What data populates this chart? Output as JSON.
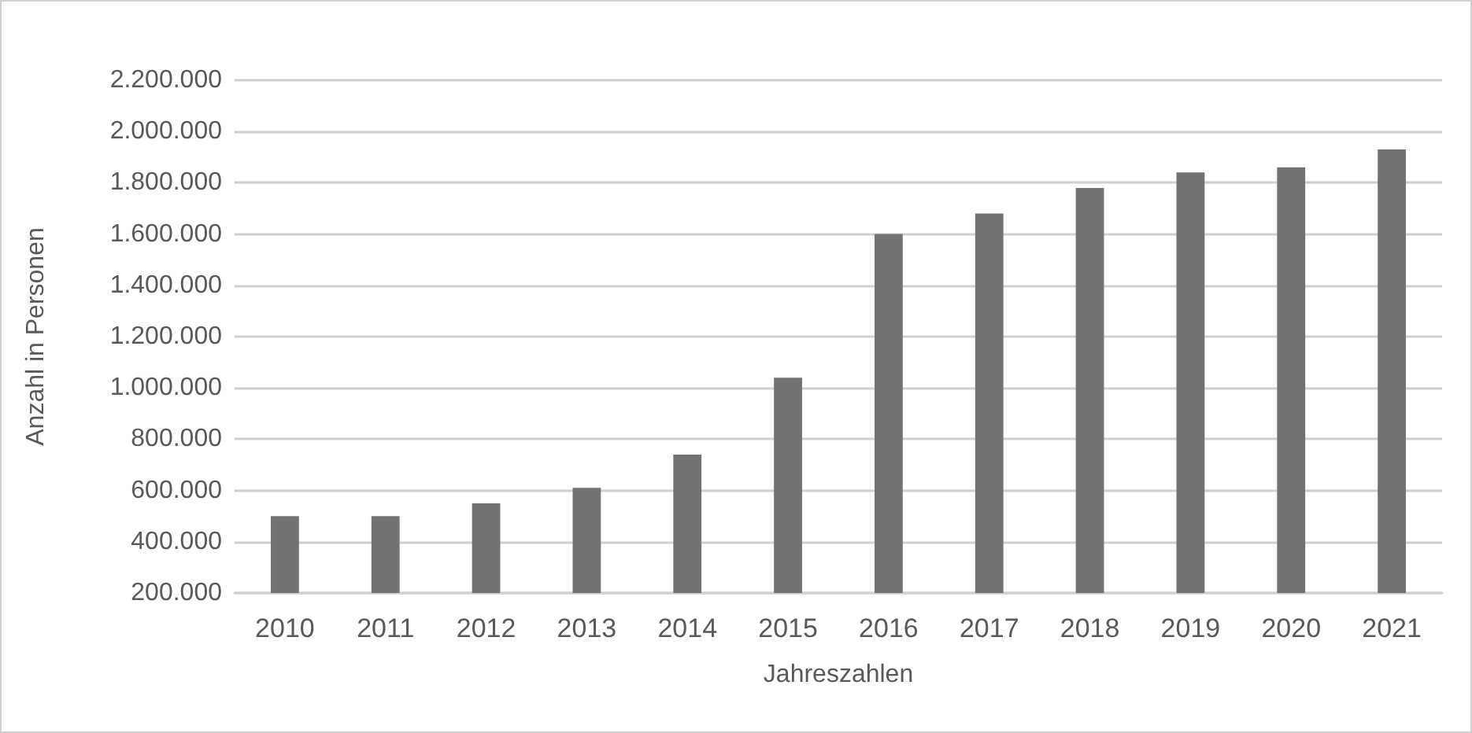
{
  "chart_data": {
    "type": "bar",
    "xlabel": "Jahreszahlen",
    "ylabel": "Anzahl in Personen",
    "categories": [
      "2010",
      "2011",
      "2012",
      "2013",
      "2014",
      "2015",
      "2016",
      "2017",
      "2018",
      "2019",
      "2020",
      "2021"
    ],
    "values": [
      500000,
      500000,
      550000,
      610000,
      740000,
      1040000,
      1600000,
      1680000,
      1780000,
      1840000,
      1860000,
      1930000
    ],
    "color": "#737373",
    "ylim": [
      200000,
      2200000
    ],
    "yticks": [
      {
        "value": 200000,
        "label": "200.000"
      },
      {
        "value": 400000,
        "label": "400.000"
      },
      {
        "value": 600000,
        "label": "600.000"
      },
      {
        "value": 800000,
        "label": "800.000"
      },
      {
        "value": 1000000,
        "label": "1.000.000"
      },
      {
        "value": 1200000,
        "label": "1.200.000"
      },
      {
        "value": 1400000,
        "label": "1.400.000"
      },
      {
        "value": 1600000,
        "label": "1.600.000"
      },
      {
        "value": 1800000,
        "label": "1.800.000"
      },
      {
        "value": 2000000,
        "label": "2.000.000"
      },
      {
        "value": 2200000,
        "label": "2.200.000"
      }
    ],
    "grid": "y"
  }
}
